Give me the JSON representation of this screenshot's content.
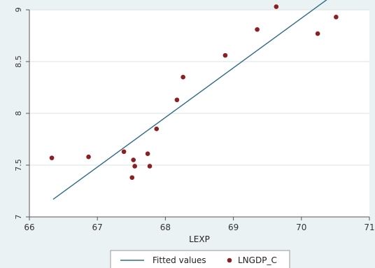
{
  "chart_data": {
    "type": "scatter",
    "title": "",
    "xlabel": "LEXP",
    "ylabel": "",
    "xlim": [
      66,
      71
    ],
    "ylim": [
      7,
      9
    ],
    "xticks": [
      66,
      67,
      68,
      69,
      70,
      71
    ],
    "yticks": [
      7,
      7.5,
      8,
      8.5,
      9
    ],
    "xtick_labels": [
      "66",
      "67",
      "68",
      "69",
      "70",
      "71"
    ],
    "ytick_labels": [
      "7",
      "7.5",
      "8",
      "8.5",
      "9"
    ],
    "grid": true,
    "legend_position": "bottom",
    "series": [
      {
        "name": "Fitted values",
        "type": "line",
        "color": "#2f6b8a",
        "x": [
          66.35,
          70.4
        ],
        "y": [
          7.17,
          9.11
        ]
      },
      {
        "name": "LNGDP_C",
        "type": "scatter",
        "color": "#8b1f24",
        "x": [
          66.33,
          66.87,
          67.39,
          67.51,
          67.53,
          67.55,
          67.74,
          67.77,
          67.87,
          68.17,
          68.26,
          68.88,
          69.35,
          69.63,
          70.24,
          70.51
        ],
        "y": [
          7.57,
          7.58,
          7.63,
          7.38,
          7.55,
          7.49,
          7.61,
          7.49,
          7.85,
          8.13,
          8.35,
          8.56,
          8.81,
          9.03,
          8.77,
          8.93
        ]
      }
    ]
  }
}
